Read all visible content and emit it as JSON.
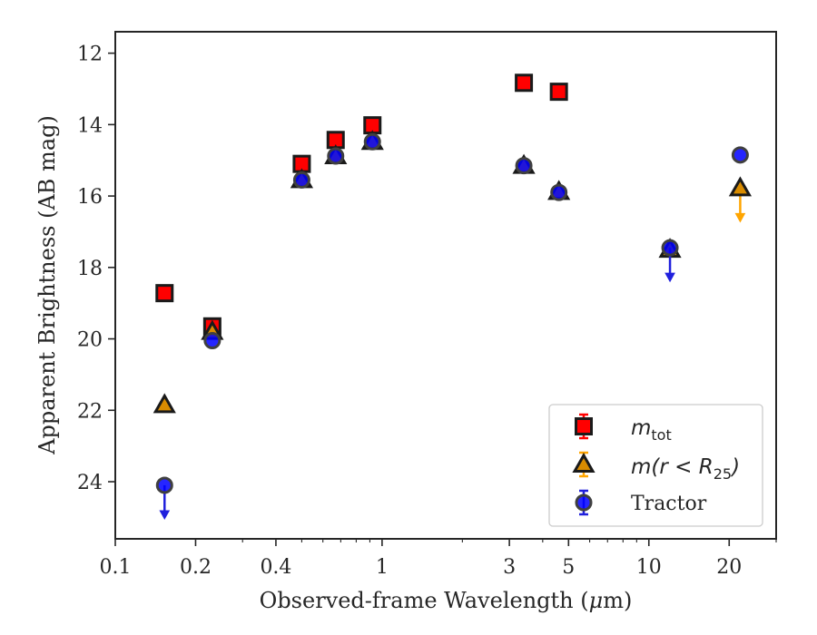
{
  "chart_data": {
    "type": "scatter",
    "xlabel_prefix": "Observed-frame Wavelength (",
    "xlabel_unit_mu": "μ",
    "xlabel_suffix": "m)",
    "ylabel": "Apparent Brightness (AB mag)",
    "xscale": "log",
    "xlim": [
      0.1,
      30
    ],
    "ylim": [
      25.6,
      11.4
    ],
    "y_inverted": true,
    "xticks": [
      0.1,
      0.2,
      0.4,
      1,
      3,
      5,
      10,
      20
    ],
    "xtick_labels": [
      "0.1",
      "0.2",
      "0.4",
      "1",
      "3",
      "5",
      "10",
      "20"
    ],
    "yticks": [
      12,
      14,
      16,
      18,
      20,
      22,
      24
    ],
    "ytick_labels": [
      "12",
      "14",
      "16",
      "18",
      "20",
      "22",
      "24"
    ],
    "legend_position": "lower right",
    "series": [
      {
        "name": "m_tot",
        "marker": "square",
        "face": "#ff0000",
        "edge": "#1a1a1a",
        "errcolor": "#ff0000",
        "points": [
          {
            "x": 0.153,
            "y": 18.72
          },
          {
            "x": 0.231,
            "y": 19.65
          },
          {
            "x": 0.5,
            "y": 15.1
          },
          {
            "x": 0.67,
            "y": 14.43
          },
          {
            "x": 0.92,
            "y": 14.02
          },
          {
            "x": 3.4,
            "y": 12.83
          },
          {
            "x": 4.6,
            "y": 13.08
          }
        ]
      },
      {
        "name": "m(r<R_25)",
        "marker": "triangle",
        "face": "#d98c00",
        "edge": "#1a1a1a",
        "errcolor": "#ffa500",
        "points": [
          {
            "x": 0.153,
            "y": 21.85
          },
          {
            "x": 0.231,
            "y": 19.8
          },
          {
            "x": 0.5,
            "y": 15.55
          },
          {
            "x": 0.67,
            "y": 14.88
          },
          {
            "x": 0.92,
            "y": 14.48
          },
          {
            "x": 3.4,
            "y": 15.15
          },
          {
            "x": 4.6,
            "y": 15.88
          },
          {
            "x": 12.0,
            "y": 17.5
          },
          {
            "x": 22.0,
            "y": 15.78,
            "upper_limit": true
          }
        ]
      },
      {
        "name": "Tractor",
        "marker": "circle",
        "face": "#0000ff",
        "edge": "#404040",
        "errcolor": "#2020dd",
        "points": [
          {
            "x": 0.153,
            "y": 24.1,
            "upper_limit": true
          },
          {
            "x": 0.231,
            "y": 20.05
          },
          {
            "x": 0.5,
            "y": 15.55
          },
          {
            "x": 0.67,
            "y": 14.88
          },
          {
            "x": 0.92,
            "y": 14.48
          },
          {
            "x": 3.4,
            "y": 15.15
          },
          {
            "x": 4.6,
            "y": 15.9
          },
          {
            "x": 12.0,
            "y": 17.45,
            "upper_limit": true
          },
          {
            "x": 22.0,
            "y": 14.85
          }
        ]
      }
    ]
  },
  "legend": {
    "items": [
      {
        "main": "m",
        "sub": "tot"
      },
      {
        "main": "m(r < R",
        "sub": "25",
        "tail": ")"
      },
      {
        "main": "Tractor"
      }
    ]
  }
}
